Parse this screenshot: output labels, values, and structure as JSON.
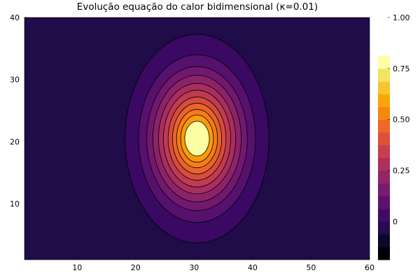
{
  "chart_data": {
    "type": "heatmap",
    "subtype": "filled-contour",
    "title": "Evolução equação do calor bidimensional (κ=0.01)",
    "xlabel": "",
    "ylabel": "",
    "xlim": [
      1,
      60
    ],
    "ylim": [
      1,
      40
    ],
    "x_ticks": [
      10,
      20,
      30,
      40,
      50,
      60
    ],
    "x_tick_labels": [
      "10",
      "20",
      "30",
      "40",
      "50",
      "60"
    ],
    "y_ticks": [
      10,
      20,
      30,
      40
    ],
    "y_tick_labels": [
      "10",
      "20",
      "30",
      "40"
    ],
    "grid": false,
    "colormap": "inferno",
    "peak": {
      "x": 30.5,
      "y": 20.5,
      "value": 1.0
    },
    "contour_semi_axes_x": [
      12.3,
      10.0,
      8.6,
      7.55,
      6.6,
      5.75,
      4.95,
      4.2,
      3.5,
      2.8,
      2.1
    ],
    "contour_semi_axes_y": [
      16.8,
      13.5,
      11.6,
      10.2,
      8.9,
      7.8,
      6.7,
      5.7,
      4.7,
      3.8,
      2.8
    ],
    "field_fill_colors": [
      "#1f0c48",
      "#390963",
      "#56106e",
      "#71196e",
      "#8c2369",
      "#a82e5f",
      "#c03a51",
      "#d84c3e",
      "#ea632a",
      "#f57d15",
      "#fb9b06",
      "#fcffa4"
    ],
    "colorbar": {
      "min": -0.1875,
      "max": 1.0,
      "band_size": 0.0625,
      "band_colors": [
        "#000004",
        "#0c0826",
        "#240c4f",
        "#420a68",
        "#5d126e",
        "#781c6d",
        "#932667",
        "#ae305c",
        "#c73e4c",
        "#dd513a",
        "#ed6925",
        "#f8870e",
        "#fca50a",
        "#f6c62f",
        "#f1e561",
        "#fcffa4"
      ],
      "ticks": [
        0,
        0.25,
        0.5,
        0.75,
        1.0
      ],
      "tick_labels": [
        "0",
        "0.25",
        "0.50",
        "0.75",
        "1.00"
      ]
    }
  }
}
